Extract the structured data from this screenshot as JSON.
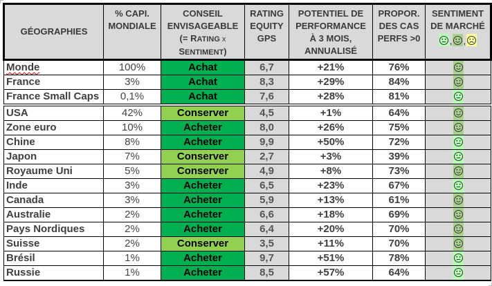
{
  "table": {
    "headers": {
      "geo": "GÉOGRAPHIES",
      "capi_line1": "% CAPI.",
      "capi_line2": "MONDIALE",
      "conseil_line1": "CONSEIL",
      "conseil_line2": "ENVISAGEABLE",
      "conseil_line3_a": "(= R",
      "conseil_line3_b": "ATING",
      "conseil_line3_c": " x",
      "conseil_line4_a": "S",
      "conseil_line4_b": "ENTIMENT",
      "conseil_line4_c": ")",
      "rating_line1": "RATING",
      "rating_line2": "EQUITY",
      "rating_line3": "GPS",
      "pot_line1": "POTENTIEL DE",
      "pot_line2": "PERFORMANCE",
      "pot_line3": "À 3 MOIS,",
      "pot_line4": "ANNUALISÉ",
      "prop_line1": "PROPOR.",
      "prop_line2": "DES CAS",
      "prop_line3": "PERFS >0",
      "sent_line1": "SENTIMENT",
      "sent_line2": "DE MARCHÉ",
      "sent_legend": [
        "neutral-face",
        "smiling-face",
        "frowning-face"
      ],
      "sent_legend_sep": ","
    },
    "rows": [
      {
        "geo": "Monde",
        "capi": "100%",
        "conseil": "Achat",
        "conseil_type": "buy",
        "rating": "6,7",
        "potentiel": "+21%",
        "propor": "76%",
        "sentiment": "smiling-face"
      },
      {
        "geo": "France",
        "capi": "3%",
        "conseil": "Achat",
        "conseil_type": "buy",
        "rating": "8,3",
        "potentiel": "+29%",
        "propor": "84%",
        "sentiment": "smiling-face"
      },
      {
        "geo": "France Small Caps",
        "capi": "0,1%",
        "conseil": "Achat",
        "conseil_type": "buy",
        "rating": "7,6",
        "potentiel": "+28%",
        "propor": "81%",
        "sentiment": "neutral-face"
      },
      {
        "geo": "USA",
        "capi": "42%",
        "conseil": "Conserver",
        "conseil_type": "hold",
        "rating": "4,5",
        "potentiel": "+1%",
        "propor": "64%",
        "sentiment": "smiling-face"
      },
      {
        "geo": "Zone euro",
        "capi": "10%",
        "conseil": "Acheter",
        "conseil_type": "buy",
        "rating": "8,0",
        "potentiel": "+26%",
        "propor": "75%",
        "sentiment": "smiling-face"
      },
      {
        "geo": "Chine",
        "capi": "8%",
        "conseil": "Acheter",
        "conseil_type": "buy",
        "rating": "9,9",
        "potentiel": "+50%",
        "propor": "72%",
        "sentiment": "neutral-face"
      },
      {
        "geo": "Japon",
        "capi": "7%",
        "conseil": "Conserver",
        "conseil_type": "hold",
        "rating": "2,7",
        "potentiel": "+3%",
        "propor": "39%",
        "sentiment": "neutral-face"
      },
      {
        "geo": "Royaume Uni",
        "capi": "5%",
        "conseil": "Conserver",
        "conseil_type": "hold",
        "rating": "4,9",
        "potentiel": "+8%",
        "propor": "73%",
        "sentiment": "smiling-face"
      },
      {
        "geo": "Inde",
        "capi": "3%",
        "conseil": "Acheter",
        "conseil_type": "buy",
        "rating": "6,5",
        "potentiel": "+23%",
        "propor": "67%",
        "sentiment": "neutral-face"
      },
      {
        "geo": "Canada",
        "capi": "3%",
        "conseil": "Acheter",
        "conseil_type": "buy",
        "rating": "5,9",
        "potentiel": "+13%",
        "propor": "61%",
        "sentiment": "smiling-face"
      },
      {
        "geo": "Australie",
        "capi": "2%",
        "conseil": "Acheter",
        "conseil_type": "buy",
        "rating": "6,6",
        "potentiel": "+18%",
        "propor": "69%",
        "sentiment": "smiling-face"
      },
      {
        "geo": "Pays Nordiques",
        "capi": "2%",
        "conseil": "Acheter",
        "conseil_type": "buy",
        "rating": "6,4",
        "potentiel": "+20%",
        "propor": "70%",
        "sentiment": "smiling-face"
      },
      {
        "geo": "Suisse",
        "capi": "2%",
        "conseil": "Conserver",
        "conseil_type": "hold",
        "rating": "3,5",
        "potentiel": "+11%",
        "propor": "70%",
        "sentiment": "smiling-face"
      },
      {
        "geo": "Brésil",
        "capi": "1%",
        "conseil": "Acheter",
        "conseil_type": "buy",
        "rating": "9,7",
        "potentiel": "+51%",
        "propor": "78%",
        "sentiment": "neutral-face"
      },
      {
        "geo": "Russie",
        "capi": "1%",
        "conseil": "Acheter",
        "conseil_type": "buy",
        "rating": "8,5",
        "potentiel": "+57%",
        "propor": "64%",
        "sentiment": "neutral-face"
      }
    ]
  },
  "colors": {
    "buy": "#00b050",
    "hold": "#92d050",
    "header_bg": "#d9d9d9",
    "sentiment_positive_bg": "#a9d18e",
    "sentiment_neutral_bg": "#b3ffb3",
    "sentiment_negative_bg": "#ffff99"
  }
}
